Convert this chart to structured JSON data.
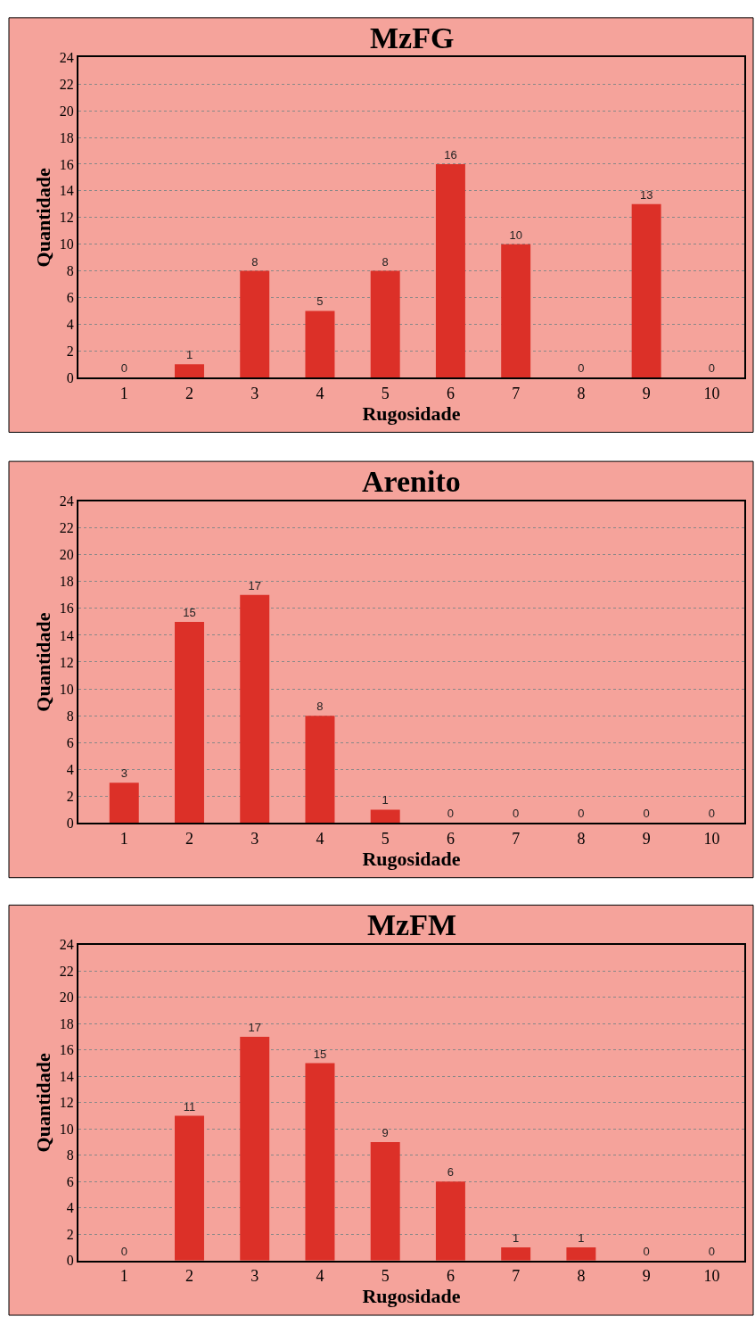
{
  "chart_data": [
    {
      "type": "bar",
      "title": "MzFG",
      "xlabel": "Rugosidade",
      "ylabel": "Quantidade",
      "categories": [
        "1",
        "2",
        "3",
        "4",
        "5",
        "6",
        "7",
        "8",
        "9",
        "10"
      ],
      "values": [
        0,
        1,
        8,
        5,
        8,
        16,
        10,
        0,
        13,
        0
      ],
      "color": "#dc3028",
      "ylim": [
        0,
        24
      ],
      "yticks": [
        0,
        2,
        4,
        6,
        8,
        10,
        12,
        14,
        16,
        18,
        20,
        22,
        24
      ],
      "grid": "y",
      "data_labels": true
    },
    {
      "type": "bar",
      "title": "Arenito",
      "xlabel": "Rugosidade",
      "ylabel": "Quantidade",
      "categories": [
        "1",
        "2",
        "3",
        "4",
        "5",
        "6",
        "7",
        "8",
        "9",
        "10"
      ],
      "values": [
        3,
        15,
        17,
        8,
        1,
        0,
        0,
        0,
        0,
        0
      ],
      "color": "#dc3028",
      "ylim": [
        0,
        24
      ],
      "yticks": [
        0,
        2,
        4,
        6,
        8,
        10,
        12,
        14,
        16,
        18,
        20,
        22,
        24
      ],
      "grid": "y",
      "data_labels": true
    },
    {
      "type": "bar",
      "title": "MzFM",
      "xlabel": "Rugosidade",
      "ylabel": "Quantidade",
      "categories": [
        "1",
        "2",
        "3",
        "4",
        "5",
        "6",
        "7",
        "8",
        "9",
        "10"
      ],
      "values": [
        0,
        11,
        17,
        15,
        9,
        6,
        1,
        1,
        0,
        0
      ],
      "color": "#dc3028",
      "ylim": [
        0,
        24
      ],
      "yticks": [
        0,
        2,
        4,
        6,
        8,
        10,
        12,
        14,
        16,
        18,
        20,
        22,
        24
      ],
      "grid": "y",
      "data_labels": true
    }
  ]
}
